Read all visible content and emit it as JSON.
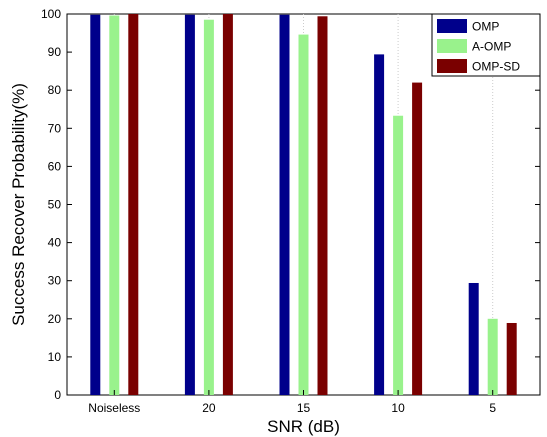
{
  "chart_data": {
    "type": "bar",
    "title": "",
    "xlabel": "SNR (dB)",
    "ylabel": "Success Recover Probability(%)",
    "categories": [
      "Noiseless",
      "20",
      "15",
      "10",
      "5"
    ],
    "yticks": [
      "0",
      "10",
      "20",
      "30",
      "40",
      "50",
      "60",
      "70",
      "80",
      "90",
      "100"
    ],
    "ylim": [
      0,
      100
    ],
    "grid": true,
    "legend_position": "top-right",
    "series": [
      {
        "name": "OMP",
        "color": "#00008b",
        "values": [
          99.8,
          99.8,
          99.8,
          89.4,
          29.4
        ]
      },
      {
        "name": "A-OMP",
        "color": "#99f28c",
        "values": [
          99.6,
          98.5,
          94.6,
          73.3,
          20.0
        ]
      },
      {
        "name": "OMP-SD",
        "color": "#7a0000",
        "values": [
          100,
          100,
          99.4,
          82.0,
          18.9
        ]
      }
    ]
  }
}
